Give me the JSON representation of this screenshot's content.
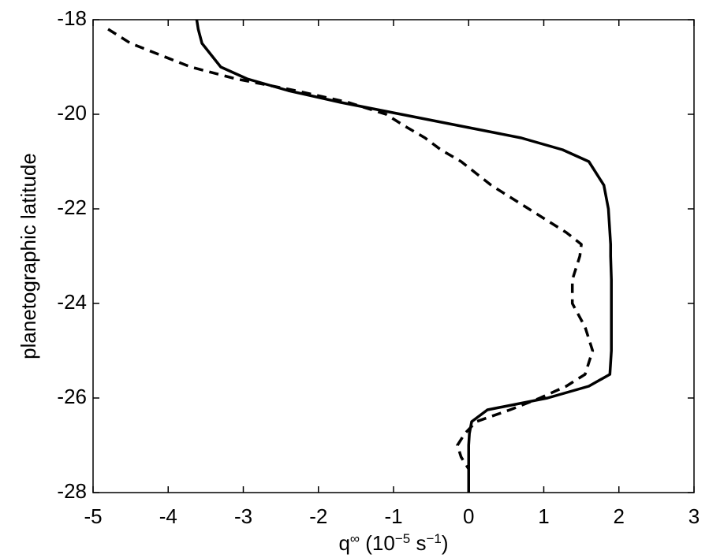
{
  "chart_data": {
    "type": "line",
    "xlabel": [
      "q",
      "∞",
      " (10",
      "−5",
      " s",
      "−1",
      ")"
    ],
    "ylabel": "planetographic latitude",
    "y": [
      -18,
      -18.2,
      -18.5,
      -19,
      -19.25,
      -19.5,
      -19.75,
      -20,
      -20.25,
      -20.5,
      -20.75,
      -21,
      -21.5,
      -22,
      -22.5,
      -22.75,
      -23,
      -23.5,
      -24,
      -24.5,
      -25,
      -25.5,
      -25.75,
      -26,
      -26.25,
      -26.5,
      -26.75,
      -27,
      -27.25,
      -27.5,
      -28
    ],
    "series": [
      {
        "color": "#000000",
        "style": "solid",
        "values": [
          -3.62,
          -3.6,
          -3.55,
          -3.3,
          -2.95,
          -2.4,
          -1.7,
          -0.9,
          -0.1,
          0.7,
          1.25,
          1.6,
          1.8,
          1.86,
          1.88,
          1.89,
          1.89,
          1.9,
          1.9,
          1.9,
          1.9,
          1.88,
          1.6,
          1.05,
          0.25,
          0.04,
          0.01,
          0,
          0,
          0,
          0
        ]
      },
      {
        "color": "#000000",
        "style": "dashed",
        "values": [
          null,
          -4.8,
          -4.5,
          -3.7,
          -3.1,
          -2.3,
          -1.6,
          -1.1,
          -0.85,
          -0.58,
          -0.37,
          -0.1,
          0.3,
          0.8,
          1.3,
          1.5,
          1.48,
          1.38,
          1.38,
          1.55,
          1.65,
          1.55,
          1.3,
          0.95,
          0.55,
          0.1,
          -0.05,
          -0.15,
          -0.1,
          0,
          0
        ]
      }
    ],
    "xlim": [
      -5,
      3
    ],
    "xticks": [
      -5,
      -4,
      -3,
      -2,
      -1,
      0,
      1,
      2,
      3
    ],
    "ylim": [
      -28,
      -18
    ],
    "yticks": [
      -28,
      -26,
      -24,
      -22,
      -20,
      -18
    ],
    "grid": false
  }
}
